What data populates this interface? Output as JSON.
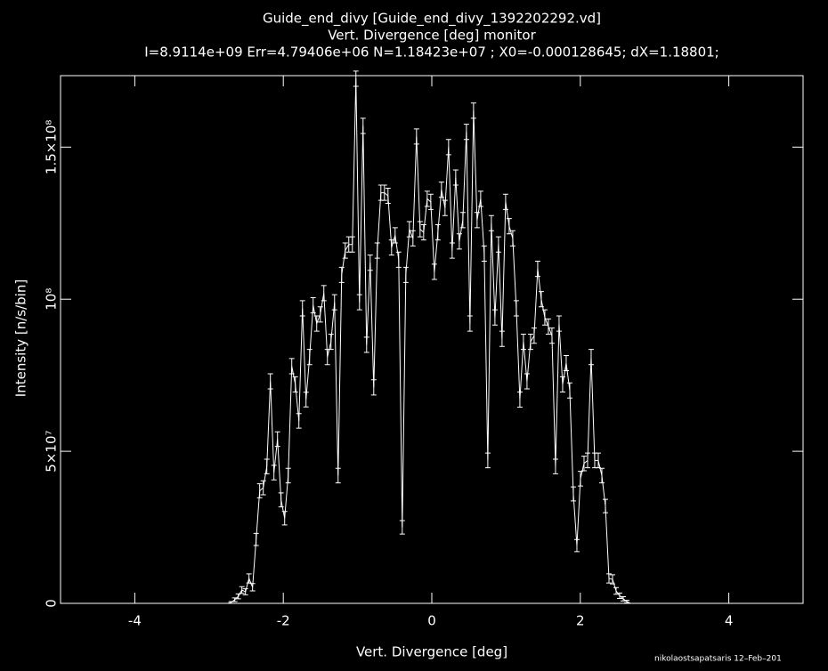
{
  "chart_data": {
    "type": "errorline",
    "title": "Guide_end_divy [Guide_end_divy_1392202292.vd]",
    "subtitle": "Vert. Divergence [deg] monitor",
    "info": "I=8.9114e+09 Err=4.79406e+06 N=1.18423e+07 ; X0=-0.000128645; dX=1.18801;",
    "xlabel": "Vert. Divergence [deg]",
    "ylabel": "Intensity [n/s/bin]",
    "footer": "nikolaostsapatsaris 12–Feb–201",
    "color": "#ffffff",
    "xlim": [
      -5,
      5
    ],
    "xticks": [
      -4,
      -2,
      0,
      2,
      4
    ],
    "ylim": [
      0,
      173500000
    ],
    "yticks": [
      {
        "value": 0,
        "label": "0"
      },
      {
        "value": 50000000,
        "label": "5×10⁷"
      },
      {
        "value": 100000000,
        "label": "10⁸"
      },
      {
        "value": 150000000,
        "label": "1.5×10⁸"
      }
    ],
    "x": [
      -2.75,
      -2.702,
      -2.654,
      -2.606,
      -2.558,
      -2.51,
      -2.462,
      -2.414,
      -2.366,
      -2.318,
      -2.27,
      -2.222,
      -2.174,
      -2.126,
      -2.078,
      -2.03,
      -1.982,
      -1.934,
      -1.886,
      -1.838,
      -1.79,
      -1.742,
      -1.694,
      -1.646,
      -1.598,
      -1.55,
      -1.502,
      -1.454,
      -1.406,
      -1.358,
      -1.31,
      -1.262,
      -1.214,
      -1.166,
      -1.118,
      -1.07,
      -1.022,
      -0.974,
      -0.926,
      -0.878,
      -0.83,
      -0.782,
      -0.734,
      -0.686,
      -0.638,
      -0.59,
      -0.542,
      -0.494,
      -0.446,
      -0.398,
      -0.35,
      -0.302,
      -0.254,
      -0.206,
      -0.158,
      -0.11,
      -0.062,
      -0.014,
      0.034,
      0.082,
      0.13,
      0.178,
      0.226,
      0.274,
      0.322,
      0.37,
      0.418,
      0.466,
      0.514,
      0.562,
      0.61,
      0.658,
      0.706,
      0.754,
      0.802,
      0.85,
      0.898,
      0.946,
      0.994,
      1.042,
      1.09,
      1.138,
      1.186,
      1.234,
      1.282,
      1.33,
      1.378,
      1.426,
      1.474,
      1.522,
      1.57,
      1.618,
      1.666,
      1.714,
      1.762,
      1.81,
      1.858,
      1.906,
      1.954,
      2.002,
      2.05,
      2.098,
      2.146,
      2.194,
      2.242,
      2.29,
      2.338,
      2.386,
      2.434,
      2.482,
      2.53,
      2.578,
      2.626,
      2.674
    ],
    "values": [
      0,
      300000,
      1200000,
      2300000,
      4400000,
      3800000,
      8200000,
      5300000,
      21000000,
      37000000,
      38000000,
      45000000,
      73000000,
      43000000,
      54000000,
      34000000,
      28000000,
      42000000,
      78000000,
      72000000,
      60000000,
      97000000,
      67000000,
      81000000,
      98000000,
      92000000,
      95000000,
      102000000,
      81000000,
      86000000,
      99000000,
      42000000,
      108000000,
      116000000,
      118000000,
      118000000,
      172500000,
      99000000,
      157000000,
      85000000,
      112000000,
      71000000,
      116000000,
      135000000,
      135000000,
      134000000,
      117000000,
      121000000,
      113000000,
      25000000,
      108000000,
      123000000,
      120000000,
      153500000,
      123000000,
      122000000,
      133000000,
      132000000,
      109000000,
      122000000,
      136000000,
      130000000,
      150000000,
      116000000,
      140000000,
      119000000,
      126000000,
      155000000,
      92000000,
      162000000,
      126000000,
      133000000,
      115000000,
      47000000,
      125000000,
      94000000,
      118000000,
      87000000,
      132000000,
      124000000,
      120000000,
      97000000,
      67000000,
      86000000,
      73000000,
      86000000,
      88000000,
      110000000,
      100000000,
      94000000,
      91000000,
      88000000,
      45000000,
      92000000,
      72000000,
      79000000,
      70000000,
      36000000,
      19000000,
      41000000,
      46000000,
      47000000,
      81000000,
      47000000,
      47000000,
      42000000,
      32000000,
      8200000,
      7900000,
      4100000,
      2500000,
      1500000,
      600000,
      0
    ],
    "errors": [
      0,
      300000,
      600000,
      800000,
      1100000,
      1000000,
      1500000,
      1200000,
      2000000,
      2300000,
      2300000,
      2400000,
      2500000,
      2400000,
      2400000,
      2300000,
      2200000,
      2400000,
      2500000,
      2500000,
      2400000,
      2500000,
      2400000,
      2500000,
      2500000,
      2500000,
      2500000,
      2500000,
      2500000,
      2500000,
      2500000,
      2400000,
      2500000,
      2500000,
      2500000,
      2500000,
      2500000,
      2500000,
      2500000,
      2500000,
      2500000,
      2500000,
      2500000,
      2500000,
      2500000,
      2500000,
      2500000,
      2500000,
      2500000,
      2200000,
      2500000,
      2500000,
      2500000,
      2500000,
      2500000,
      2500000,
      2500000,
      2500000,
      2500000,
      2500000,
      2500000,
      2500000,
      2500000,
      2500000,
      2500000,
      2500000,
      2500000,
      2500000,
      2500000,
      2500000,
      2500000,
      2500000,
      2500000,
      2400000,
      2500000,
      2500000,
      2500000,
      2500000,
      2500000,
      2500000,
      2500000,
      2500000,
      2500000,
      2500000,
      2500000,
      2500000,
      2500000,
      2500000,
      2500000,
      2500000,
      2500000,
      2500000,
      2400000,
      2500000,
      2500000,
      2500000,
      2500000,
      2300000,
      2000000,
      2400000,
      2400000,
      2400000,
      2500000,
      2400000,
      2400000,
      2400000,
      2200000,
      1500000,
      1500000,
      1100000,
      900000,
      700000,
      400000,
      0
    ]
  }
}
